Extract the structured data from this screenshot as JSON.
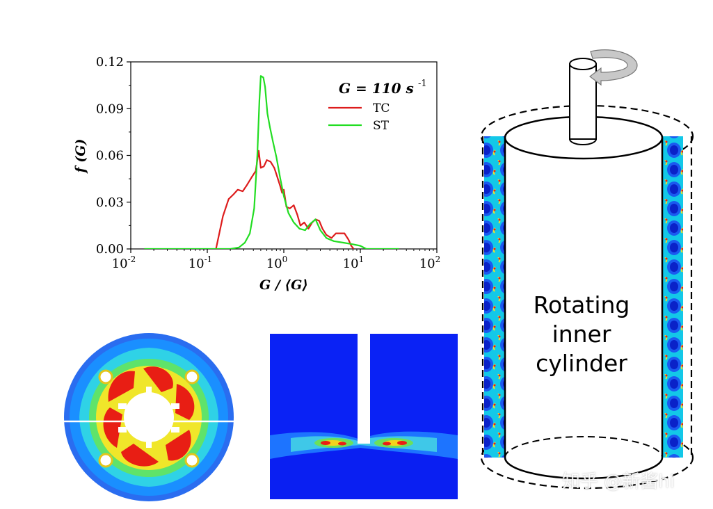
{
  "figure": {
    "rotating_label": [
      "Rotating",
      "inner",
      "cylinder"
    ],
    "watermark": "知乎 @新酱hi"
  },
  "chart_data": {
    "type": "line",
    "xscale": "log",
    "xlim": [
      0.01,
      100
    ],
    "ylim": [
      0,
      0.12
    ],
    "xlabel": "G / ⟨G⟩",
    "ylabel": "f (G)",
    "annotation": "G = 110 s",
    "annotation_sup": "-1",
    "legend_position": "top-right",
    "x_ticks": [
      {
        "base": "10",
        "exp": "-2",
        "value": 0.01
      },
      {
        "base": "10",
        "exp": "-1",
        "value": 0.1
      },
      {
        "base": "10",
        "exp": "0",
        "value": 1
      },
      {
        "base": "10",
        "exp": "1",
        "value": 10
      },
      {
        "base": "10",
        "exp": "2",
        "value": 100
      }
    ],
    "y_ticks": [
      "0.00",
      "0.03",
      "0.06",
      "0.09",
      "0.12"
    ],
    "series": [
      {
        "name": "TC",
        "color": "#dd1c1c",
        "points": [
          [
            0.13,
            0.0
          ],
          [
            0.16,
            0.021
          ],
          [
            0.19,
            0.032
          ],
          [
            0.22,
            0.035
          ],
          [
            0.25,
            0.038
          ],
          [
            0.29,
            0.037
          ],
          [
            0.33,
            0.041
          ],
          [
            0.38,
            0.046
          ],
          [
            0.43,
            0.05
          ],
          [
            0.47,
            0.063
          ],
          [
            0.5,
            0.052
          ],
          [
            0.55,
            0.053
          ],
          [
            0.6,
            0.057
          ],
          [
            0.67,
            0.056
          ],
          [
            0.75,
            0.052
          ],
          [
            0.8,
            0.048
          ],
          [
            0.85,
            0.044
          ],
          [
            0.9,
            0.04
          ],
          [
            0.95,
            0.036
          ],
          [
            1.0,
            0.038
          ],
          [
            1.08,
            0.027
          ],
          [
            1.2,
            0.026
          ],
          [
            1.35,
            0.028
          ],
          [
            1.5,
            0.022
          ],
          [
            1.65,
            0.015
          ],
          [
            1.85,
            0.017
          ],
          [
            2.1,
            0.013
          ],
          [
            2.35,
            0.017
          ],
          [
            2.6,
            0.019
          ],
          [
            2.9,
            0.018
          ],
          [
            3.2,
            0.013
          ],
          [
            3.6,
            0.009
          ],
          [
            4.2,
            0.007
          ],
          [
            4.8,
            0.01
          ],
          [
            5.4,
            0.01
          ],
          [
            6.2,
            0.01
          ],
          [
            7.0,
            0.006
          ],
          [
            7.6,
            0.002
          ],
          [
            8.2,
            0.0
          ]
        ]
      },
      {
        "name": "ST",
        "color": "#22dd22",
        "points": [
          [
            0.015,
            0.0
          ],
          [
            0.03,
            0.0
          ],
          [
            0.06,
            0.0
          ],
          [
            0.1,
            0.0
          ],
          [
            0.15,
            0.0
          ],
          [
            0.2,
            0.0
          ],
          [
            0.26,
            0.001
          ],
          [
            0.31,
            0.004
          ],
          [
            0.36,
            0.01
          ],
          [
            0.41,
            0.026
          ],
          [
            0.45,
            0.06
          ],
          [
            0.48,
            0.095
          ],
          [
            0.5,
            0.111
          ],
          [
            0.54,
            0.11
          ],
          [
            0.57,
            0.104
          ],
          [
            0.61,
            0.087
          ],
          [
            0.66,
            0.078
          ],
          [
            0.72,
            0.069
          ],
          [
            0.8,
            0.059
          ],
          [
            0.9,
            0.045
          ],
          [
            1.0,
            0.034
          ],
          [
            1.15,
            0.023
          ],
          [
            1.35,
            0.017
          ],
          [
            1.6,
            0.013
          ],
          [
            1.9,
            0.012
          ],
          [
            2.2,
            0.016
          ],
          [
            2.6,
            0.019
          ],
          [
            3.0,
            0.012
          ],
          [
            3.6,
            0.007
          ],
          [
            4.5,
            0.005
          ],
          [
            6.0,
            0.004
          ],
          [
            8.0,
            0.003
          ],
          [
            10.0,
            0.002
          ],
          [
            12.0,
            0.0
          ],
          [
            20.0,
            0.0
          ],
          [
            32.0,
            0.0
          ]
        ]
      }
    ]
  }
}
